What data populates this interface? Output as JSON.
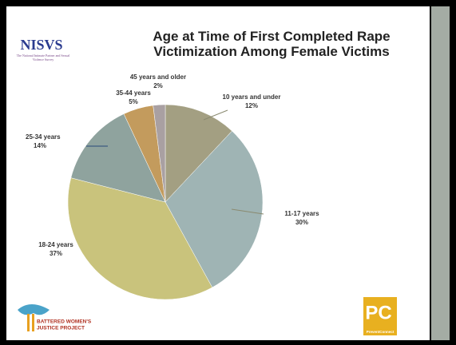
{
  "chart_data": {
    "type": "pie",
    "title": "Age at Time of First Completed Rape Victimization Among Female Victims",
    "categories": [
      "10 years and under",
      "11-17 years",
      "18-24 years",
      "25-34 years",
      "35-44 years",
      "45 years and older"
    ],
    "values": [
      12,
      30,
      37,
      14,
      5,
      2
    ],
    "value_labels": [
      "12%",
      "30%",
      "37%",
      "14%",
      "5%",
      "2%"
    ],
    "colors": [
      "#a39f82",
      "#9fb4b4",
      "#c9c37c",
      "#8fa39e",
      "#c39b5d",
      "#a9a0a2"
    ]
  },
  "logos": {
    "nisvs": "NISVS",
    "nisvs_sub": "The National Intimate Partner and Sexual Violence Survey",
    "bwjp_1": "BATTERED WOMEN'S",
    "bwjp_2": "JUSTICE PROJECT",
    "pc": "PC",
    "pc_sub": "PreventConnect"
  }
}
